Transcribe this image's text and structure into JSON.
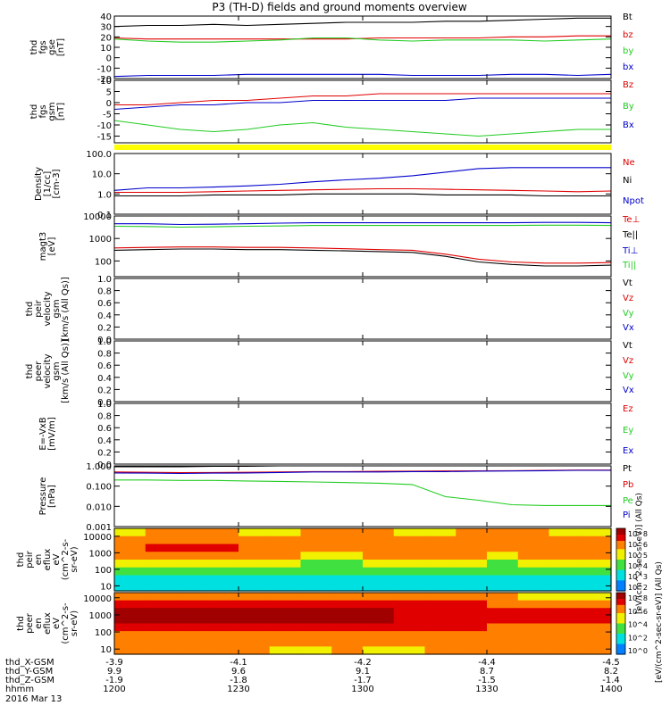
{
  "title": "P3 (TH-D) fields and ground moments overview",
  "date_label": "2016 Mar 13",
  "colors": {
    "black": "#000000",
    "red": "#e00000",
    "green": "#22cc22",
    "blue": "#0000cc",
    "yellow": "#ffff00"
  },
  "chart_data": [
    {
      "type": "line",
      "ylabel": [
        "thd",
        "fgs",
        "gse",
        "[nT]"
      ],
      "ylim": [
        -20,
        40
      ],
      "yticks": [
        "40",
        "30",
        "20",
        "10",
        "0",
        "-10",
        "-20"
      ],
      "yscale": "linear",
      "series": [
        {
          "name": "Bt",
          "color": "black",
          "values": [
            30,
            31,
            31,
            32,
            31,
            32,
            33,
            34,
            34,
            34,
            35,
            35,
            36,
            37,
            38,
            38
          ]
        },
        {
          "name": "bz",
          "color": "red",
          "values": [
            19,
            18,
            18,
            18,
            18,
            18,
            18,
            18,
            19,
            19,
            19,
            19,
            20,
            20,
            21,
            21
          ]
        },
        {
          "name": "by",
          "color": "green",
          "values": [
            18,
            16,
            15,
            15,
            16,
            17,
            19,
            19,
            17,
            16,
            17,
            17,
            17,
            16,
            17,
            18
          ]
        },
        {
          "name": "bx",
          "color": "blue",
          "values": [
            -18,
            -17,
            -17,
            -17,
            -16,
            -16,
            -16,
            -16,
            -16,
            -17,
            -17,
            -17,
            -16,
            -16,
            -17,
            -16
          ]
        }
      ]
    },
    {
      "type": "line",
      "ylabel": [
        "thd",
        "fgs",
        "gsm",
        "[nT]"
      ],
      "ylim": [
        -18,
        10
      ],
      "yticks": [
        "10",
        "5",
        "0",
        "-5",
        "-10",
        "-15"
      ],
      "yscale": "linear",
      "series": [
        {
          "name": "Bz",
          "color": "red",
          "values": [
            -1,
            -1,
            0,
            1,
            1,
            2,
            3,
            3,
            4,
            4,
            4,
            4,
            4,
            4,
            4,
            4
          ]
        },
        {
          "name": "By",
          "color": "green",
          "values": [
            -8,
            -10,
            -12,
            -13,
            -12,
            -10,
            -9,
            -11,
            -12,
            -13,
            -14,
            -15,
            -14,
            -13,
            -12,
            -12
          ]
        },
        {
          "name": "Bx",
          "color": "blue",
          "values": [
            -3,
            -2,
            -1,
            -1,
            0,
            0,
            1,
            1,
            1,
            1,
            1,
            2,
            2,
            2,
            2,
            2
          ]
        }
      ]
    },
    {
      "type": "line",
      "ylabel": [
        "Density",
        "[1/cc]",
        "[cm-3]"
      ],
      "ylim": [
        0.1,
        100
      ],
      "yticks": [
        "100.0",
        "10.0",
        "1.0",
        "0.1"
      ],
      "yscale": "log",
      "series": [
        {
          "name": "Ne",
          "color": "red",
          "values": [
            1.2,
            1.2,
            1.2,
            1.3,
            1.4,
            1.5,
            1.6,
            1.7,
            1.8,
            1.8,
            1.7,
            1.6,
            1.5,
            1.4,
            1.3,
            1.4
          ]
        },
        {
          "name": "Ni",
          "color": "black",
          "values": [
            0.8,
            0.8,
            0.8,
            0.9,
            0.9,
            0.9,
            1.0,
            1.0,
            1.0,
            1.0,
            0.9,
            0.9,
            0.9,
            0.8,
            0.8,
            0.8
          ]
        },
        {
          "name": "Npot",
          "color": "blue",
          "values": [
            1.5,
            2,
            2,
            2.2,
            2.5,
            3,
            4,
            5,
            6,
            8,
            12,
            18,
            20,
            20,
            20,
            20
          ]
        }
      ]
    },
    {
      "type": "line",
      "ylabel": [
        "magt3",
        "[eV]"
      ],
      "ylim": [
        20,
        10000
      ],
      "yticks": [
        "10000",
        "1000",
        "100"
      ],
      "yscale": "log",
      "series": [
        {
          "name": "Te⊥",
          "color": "red",
          "values": [
            380,
            400,
            420,
            420,
            400,
            400,
            380,
            350,
            320,
            300,
            200,
            120,
            90,
            80,
            80,
            85
          ]
        },
        {
          "name": "Te||",
          "color": "black",
          "values": [
            300,
            320,
            340,
            340,
            320,
            320,
            300,
            280,
            260,
            240,
            160,
            90,
            70,
            60,
            60,
            65
          ]
        },
        {
          "name": "Ti⊥",
          "color": "blue",
          "values": [
            4500,
            4500,
            4200,
            4300,
            4500,
            4800,
            5000,
            5000,
            5000,
            5000,
            5000,
            5000,
            5000,
            5200,
            5200,
            5000
          ]
        },
        {
          "name": "Ti||",
          "color": "green",
          "values": [
            3500,
            3400,
            3200,
            3300,
            3500,
            3600,
            3800,
            3800,
            3800,
            3800,
            3800,
            3800,
            3800,
            3900,
            3900,
            3800
          ]
        }
      ]
    },
    {
      "type": "line",
      "ylabel": [
        "thd",
        "peir",
        "velocity",
        "gsm",
        "[km/s (All Qs)]"
      ],
      "ylim": [
        0,
        1
      ],
      "yticks": [
        "1.0",
        "0.8",
        "0.6",
        "0.4",
        "0.2",
        "0.0"
      ],
      "yscale": "linear",
      "series": [
        {
          "name": "Vt",
          "color": "black",
          "values": []
        },
        {
          "name": "Vz",
          "color": "red",
          "values": []
        },
        {
          "name": "Vy",
          "color": "green",
          "values": []
        },
        {
          "name": "Vx",
          "color": "blue",
          "values": []
        }
      ]
    },
    {
      "type": "line",
      "ylabel": [
        "thd",
        "peer",
        "velocity",
        "gsm",
        "[km/s (All Qs)]"
      ],
      "ylim": [
        0,
        1
      ],
      "yticks": [
        "1.0",
        "0.8",
        "0.6",
        "0.4",
        "0.2",
        "0.0"
      ],
      "yscale": "linear",
      "series": [
        {
          "name": "Vt",
          "color": "black",
          "values": []
        },
        {
          "name": "Vz",
          "color": "red",
          "values": []
        },
        {
          "name": "Vy",
          "color": "green",
          "values": []
        },
        {
          "name": "Vx",
          "color": "blue",
          "values": []
        }
      ]
    },
    {
      "type": "line",
      "ylabel": [
        "E=-VxB",
        "[mV/m]"
      ],
      "ylim": [
        0,
        1
      ],
      "yticks": [
        "1.0",
        "0.8",
        "0.6",
        "0.4",
        "0.2",
        "0.0"
      ],
      "yscale": "linear",
      "series": [
        {
          "name": "Ez",
          "color": "red",
          "values": []
        },
        {
          "name": "Ey",
          "color": "green",
          "values": []
        },
        {
          "name": "Ex",
          "color": "blue",
          "values": []
        }
      ]
    },
    {
      "type": "line",
      "ylabel": [
        "Pressure",
        "[nPa]"
      ],
      "ylim": [
        0.001,
        1
      ],
      "yticks": [
        "1.000",
        "0.100",
        "0.010",
        "0.001"
      ],
      "yscale": "log",
      "series": [
        {
          "name": "Pt",
          "color": "black",
          "values": [
            0.9,
            0.9,
            0.9,
            0.95,
            0.95,
            1,
            1,
            1,
            1,
            1,
            1,
            1,
            1,
            1,
            1,
            1
          ]
        },
        {
          "name": "Pb",
          "color": "red",
          "values": [
            0.5,
            0.48,
            0.46,
            0.47,
            0.48,
            0.5,
            0.52,
            0.52,
            0.54,
            0.55,
            0.56,
            0.57,
            0.58,
            0.6,
            0.62,
            0.62
          ]
        },
        {
          "name": "Pe",
          "color": "green",
          "values": [
            0.2,
            0.2,
            0.19,
            0.19,
            0.18,
            0.17,
            0.16,
            0.15,
            0.14,
            0.12,
            0.03,
            0.02,
            0.012,
            0.011,
            0.011,
            0.011
          ]
        },
        {
          "name": "Pi",
          "color": "blue",
          "values": [
            0.45,
            0.44,
            0.42,
            0.44,
            0.45,
            0.47,
            0.5,
            0.5,
            0.5,
            0.52,
            0.52,
            0.55,
            0.56,
            0.58,
            0.6,
            0.6
          ]
        }
      ]
    },
    {
      "type": "heatmap",
      "ylabel": [
        "thd",
        "peir",
        "en",
        "eflux",
        "eV",
        "(cm^2-s-",
        "sr-eV)"
      ],
      "ylim": [
        5,
        30000
      ],
      "yticks": [
        "10000",
        "1000",
        "100",
        "10"
      ],
      "yscale": "log",
      "colorbar_ticks": [
        "10^8",
        "10^6",
        "10^5",
        "10^4",
        "10^3",
        "10^2"
      ],
      "colorbar_label": "[eV/(cm^2-sec-sr-eV)] (All Qs)",
      "rows": [
        [
          6.0,
          6.1,
          6.2,
          6.1,
          6.0,
          6.0,
          6.1,
          6.2,
          6.1,
          6.0,
          6.0,
          6.1,
          6.2,
          6.1,
          6.0,
          6.0
        ],
        [
          6.4,
          6.5,
          6.6,
          6.5,
          6.4,
          6.4,
          6.3,
          6.3,
          6.4,
          6.5,
          6.5,
          6.4,
          6.3,
          6.4,
          6.5,
          6.4
        ],
        [
          6.8,
          6.9,
          7.0,
          6.9,
          6.8,
          6.7,
          6.6,
          6.6,
          6.7,
          6.8,
          6.8,
          6.7,
          6.6,
          6.7,
          6.8,
          6.7
        ],
        [
          6.2,
          6.3,
          6.4,
          6.3,
          6.2,
          6.1,
          6.0,
          6.0,
          6.1,
          6.2,
          6.2,
          6.1,
          6.0,
          6.1,
          6.2,
          6.1
        ],
        [
          5.2,
          5.3,
          5.4,
          5.3,
          5.2,
          5.1,
          5.0,
          5.0,
          5.1,
          5.2,
          5.2,
          5.1,
          5.0,
          5.1,
          5.2,
          5.1
        ],
        [
          4.4,
          4.5,
          4.6,
          4.5,
          4.4,
          4.3,
          4.2,
          4.2,
          4.3,
          4.4,
          4.4,
          4.3,
          4.2,
          4.3,
          4.4,
          4.3
        ],
        [
          3.8,
          3.9,
          3.9,
          3.8,
          3.8,
          3.7,
          3.6,
          3.6,
          3.7,
          3.8,
          3.8,
          3.7,
          3.6,
          3.7,
          3.8,
          3.7
        ],
        [
          3.4,
          3.5,
          3.5,
          3.4,
          3.4,
          3.3,
          3.2,
          3.2,
          3.3,
          3.4,
          3.4,
          3.3,
          3.2,
          3.3,
          3.4,
          3.3
        ]
      ]
    },
    {
      "type": "heatmap",
      "ylabel": [
        "thd",
        "peer",
        "en",
        "eflux",
        "eV",
        "(cm^2-s-",
        "sr-eV)"
      ],
      "ylim": [
        5,
        20000
      ],
      "yticks": [
        "10000",
        "1000",
        "100",
        "10"
      ],
      "yscale": "log",
      "colorbar_ticks": [
        "10^8",
        "10^6",
        "10^4",
        "10^2",
        "10^0"
      ],
      "colorbar_label": "[eV/(cm^2-sec-sr-eV)] (All Qs)",
      "rows": [
        [
          6.2,
          6.3,
          6.4,
          6.3,
          6.2,
          6.2,
          6.3,
          6.4,
          6.3,
          6.2,
          6.4,
          6.2,
          6.1,
          6.0,
          6.0,
          6.0
        ],
        [
          6.9,
          7.0,
          7.1,
          7.0,
          6.9,
          6.9,
          7.0,
          7.1,
          7.0,
          6.9,
          7.3,
          7.2,
          6.8,
          6.6,
          6.6,
          6.6
        ],
        [
          7.6,
          7.7,
          7.8,
          7.7,
          7.6,
          7.5,
          7.5,
          7.6,
          7.5,
          7.3,
          7.4,
          7.3,
          7.0,
          6.9,
          6.9,
          6.9
        ],
        [
          7.7,
          7.8,
          7.9,
          7.8,
          7.7,
          7.6,
          7.6,
          7.7,
          7.6,
          7.4,
          7.2,
          7.1,
          7.0,
          6.9,
          6.9,
          6.9
        ],
        [
          7.2,
          7.3,
          7.4,
          7.3,
          7.2,
          7.1,
          7.1,
          7.2,
          7.1,
          7.0,
          6.9,
          6.9,
          6.8,
          6.7,
          6.7,
          6.7
        ],
        [
          6.6,
          6.7,
          6.8,
          6.7,
          6.6,
          6.5,
          6.5,
          6.6,
          6.5,
          6.5,
          6.5,
          6.5,
          6.5,
          6.4,
          6.4,
          6.4
        ],
        [
          6.3,
          6.4,
          6.4,
          6.3,
          6.3,
          6.2,
          6.2,
          6.3,
          6.2,
          6.2,
          6.3,
          6.3,
          6.3,
          6.4,
          6.5,
          6.4
        ],
        [
          6.1,
          6.2,
          6.2,
          6.1,
          6.1,
          6.0,
          6.0,
          6.1,
          6.0,
          6.0,
          6.2,
          6.2,
          6.3,
          6.4,
          6.5,
          6.5
        ]
      ]
    }
  ],
  "x_axis": {
    "rows": [
      {
        "label": "thd_X-GSM",
        "values": [
          "-3.9",
          "-4.1",
          "-4.2",
          "-4.4",
          "-4.5"
        ]
      },
      {
        "label": "thd_Y-GSM",
        "values": [
          "9.9",
          "9.6",
          "9.1",
          "8.7",
          "8.2"
        ]
      },
      {
        "label": "thd_Z-GSM",
        "values": [
          "-1.9",
          "-1.8",
          "-1.7",
          "-1.5",
          "-1.4"
        ]
      },
      {
        "label": "hhmm",
        "values": [
          "1200",
          "1230",
          "1300",
          "1330",
          "1400"
        ]
      }
    ]
  }
}
